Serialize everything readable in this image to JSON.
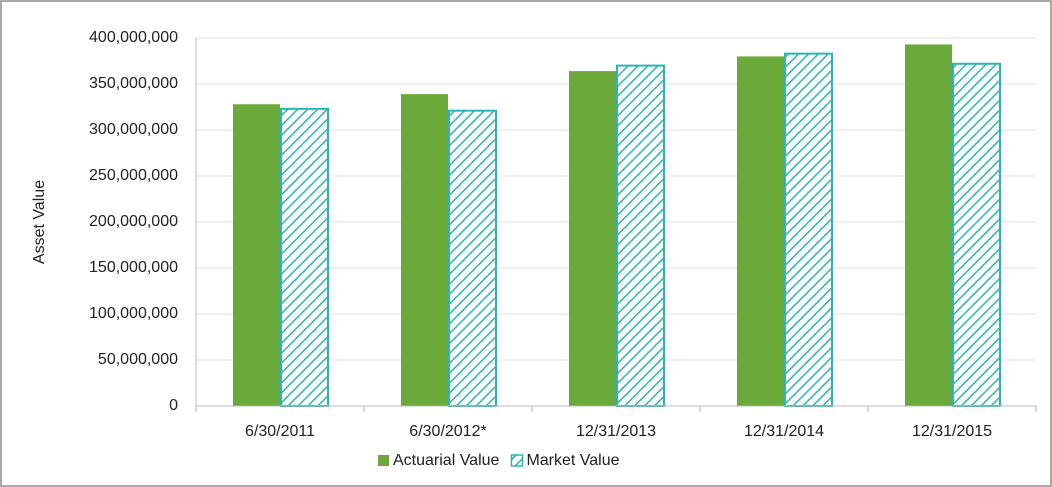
{
  "chart_data": {
    "type": "bar",
    "categories": [
      "6/30/2011",
      "6/30/2012*",
      "12/31/2013",
      "12/31/2014",
      "12/31/2015"
    ],
    "series": [
      {
        "name": "Actuarial Value",
        "color": "#6aaa3a",
        "pattern": "solid",
        "values": [
          328000000,
          339000000,
          364000000,
          380000000,
          393000000
        ]
      },
      {
        "name": "Market Value",
        "color": "#2bb5b5",
        "pattern": "hatch",
        "values": [
          323000000,
          321000000,
          370000000,
          383000000,
          372000000
        ]
      }
    ],
    "ylabel": "Asset Value",
    "ylim": [
      0,
      400000000
    ],
    "yticks": [
      0,
      {
        "value": 50000000,
        "label": "50,000,000"
      },
      {
        "value": 100000000,
        "label": "100,000,000"
      },
      {
        "value": 150000000,
        "label": "150,000,000"
      },
      {
        "value": 200000000,
        "label": "200,000,000"
      },
      {
        "value": 250000000,
        "label": "250,000,000"
      },
      {
        "value": 300000000,
        "label": "300,000,000"
      },
      {
        "value": 350000000,
        "label": "350,000,000"
      },
      {
        "value": 400000000,
        "label": "400,000,000"
      }
    ],
    "grid": true,
    "legend": "bottom"
  }
}
